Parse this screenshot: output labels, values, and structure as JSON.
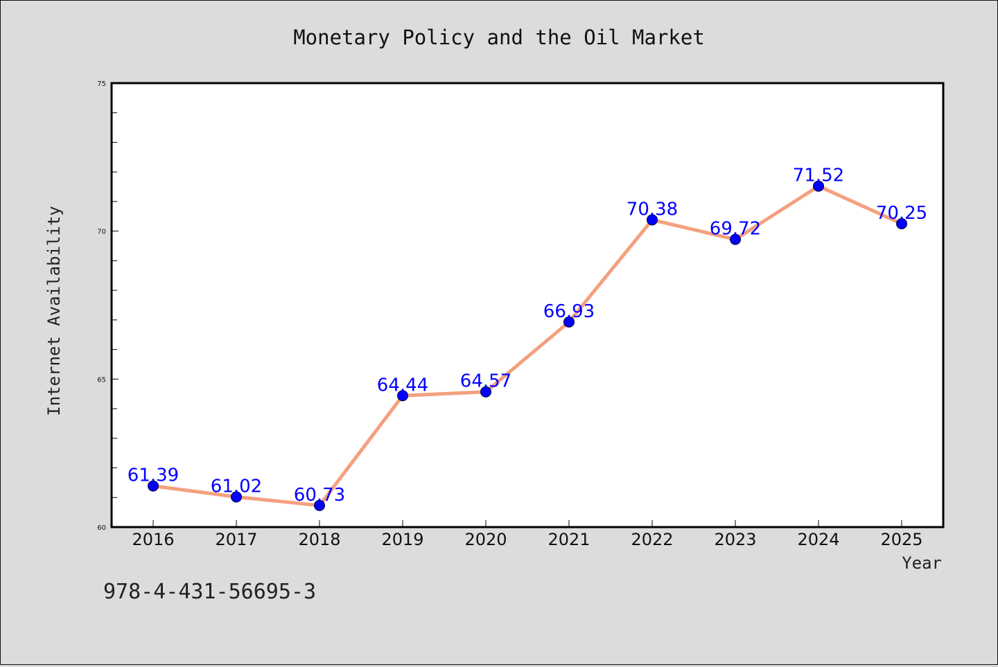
{
  "chart_data": {
    "type": "line",
    "title": "Monetary Policy and the Oil Market",
    "xlabel": "Year",
    "ylabel": "Internet Availability",
    "categories": [
      "2016",
      "2017",
      "2018",
      "2019",
      "2020",
      "2021",
      "2022",
      "2023",
      "2024",
      "2025"
    ],
    "series": [
      {
        "values": [
          61.39,
          61.02,
          60.73,
          64.44,
          64.57,
          66.93,
          70.38,
          69.72,
          71.52,
          70.25
        ],
        "data_labels": [
          "61.39",
          "61.02",
          "60.73",
          "64.44",
          "64.57",
          "66.93",
          "70.38",
          "69.72",
          "71.52",
          "70.25"
        ]
      }
    ],
    "ylim": [
      60,
      75
    ],
    "yticks": [
      "60",
      "65",
      "70",
      "75"
    ],
    "grid": false,
    "legend": "none"
  },
  "footer": {
    "code": "978-4-431-56695-3"
  },
  "colors": {
    "background": "#dcdcdc",
    "plot_background": "#ffffff",
    "line": "#f4a07e",
    "marker": "#0000ff",
    "data_label": "#0000ff"
  }
}
